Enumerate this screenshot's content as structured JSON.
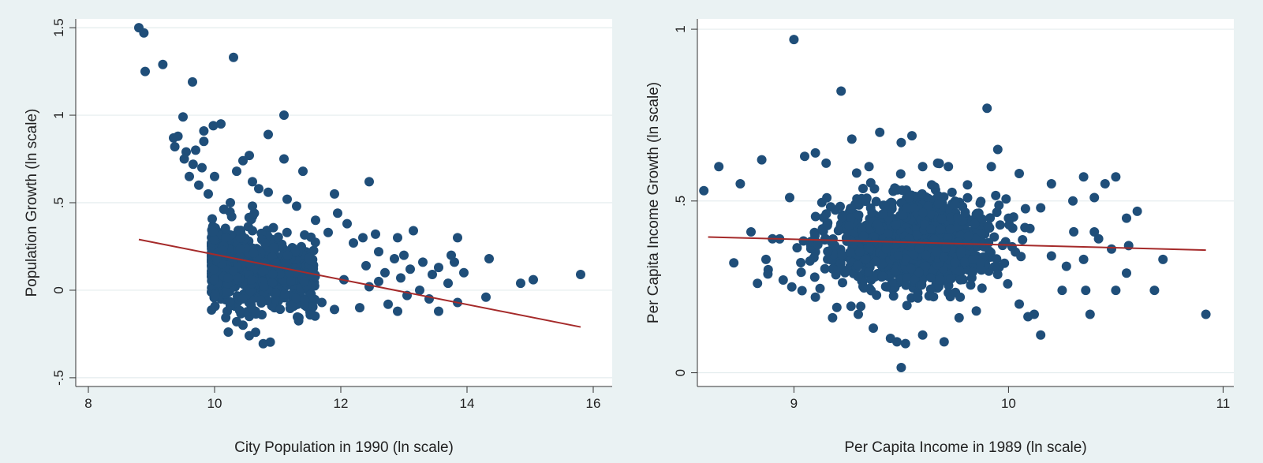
{
  "chart_data": [
    {
      "type": "scatter",
      "xlabel": "City Population in 1990 (ln scale)",
      "ylabel": "Population Growth (ln scale)",
      "xlim": [
        7.8,
        16.3
      ],
      "ylim": [
        -0.55,
        1.55
      ],
      "xticks": [
        8,
        10,
        12,
        14,
        16
      ],
      "yticks": [
        -0.5,
        0,
        0.5,
        1,
        1.5
      ],
      "ytick_labels": [
        "-.5",
        "0",
        ".5",
        "1",
        "1.5"
      ],
      "grid": true,
      "colors": {
        "points": "#1f4e79",
        "fit": "#a52a2a",
        "plot_bg": "#ffffff",
        "outer_bg": "#eaf2f3"
      },
      "fit_line": {
        "x": [
          8.8,
          15.8
        ],
        "y": [
          0.29,
          -0.21
        ]
      },
      "cloud": {
        "count": 900,
        "x_min": 9.95,
        "x_max": 11.6,
        "y_center_at_10": 0.16,
        "y_slope": -0.06,
        "y_spread": 0.1
      },
      "points": [
        [
          8.8,
          1.5
        ],
        [
          8.88,
          1.47
        ],
        [
          8.9,
          1.25
        ],
        [
          9.18,
          1.29
        ],
        [
          9.65,
          1.19
        ],
        [
          10.3,
          1.33
        ],
        [
          11.1,
          1.0
        ],
        [
          9.5,
          0.99
        ],
        [
          10.1,
          0.95
        ],
        [
          9.98,
          0.94
        ],
        [
          9.83,
          0.91
        ],
        [
          10.85,
          0.89
        ],
        [
          9.35,
          0.87
        ],
        [
          9.42,
          0.88
        ],
        [
          9.37,
          0.82
        ],
        [
          9.55,
          0.79
        ],
        [
          9.7,
          0.8
        ],
        [
          9.83,
          0.85
        ],
        [
          9.52,
          0.75
        ],
        [
          9.66,
          0.72
        ],
        [
          9.8,
          0.7
        ],
        [
          10.0,
          0.65
        ],
        [
          10.35,
          0.68
        ],
        [
          10.55,
          0.77
        ],
        [
          10.45,
          0.74
        ],
        [
          11.1,
          0.75
        ],
        [
          11.4,
          0.68
        ],
        [
          10.6,
          0.62
        ],
        [
          9.6,
          0.65
        ],
        [
          9.75,
          0.6
        ],
        [
          12.45,
          0.62
        ],
        [
          11.15,
          0.52
        ],
        [
          11.3,
          0.48
        ],
        [
          11.9,
          0.55
        ],
        [
          10.85,
          0.56
        ],
        [
          10.7,
          0.58
        ],
        [
          9.9,
          0.55
        ],
        [
          10.25,
          0.5
        ],
        [
          10.6,
          0.48
        ],
        [
          11.95,
          0.44
        ],
        [
          12.1,
          0.38
        ],
        [
          11.6,
          0.4
        ],
        [
          11.8,
          0.33
        ],
        [
          12.35,
          0.3
        ],
        [
          12.55,
          0.32
        ],
        [
          13.15,
          0.34
        ],
        [
          12.9,
          0.3
        ],
        [
          13.85,
          0.3
        ],
        [
          12.2,
          0.27
        ],
        [
          12.6,
          0.22
        ],
        [
          12.85,
          0.18
        ],
        [
          13.0,
          0.2
        ],
        [
          13.3,
          0.16
        ],
        [
          13.55,
          0.13
        ],
        [
          13.75,
          0.2
        ],
        [
          13.8,
          0.16
        ],
        [
          14.35,
          0.18
        ],
        [
          12.4,
          0.14
        ],
        [
          12.7,
          0.1
        ],
        [
          13.1,
          0.12
        ],
        [
          12.95,
          0.07
        ],
        [
          13.45,
          0.09
        ],
        [
          13.7,
          0.04
        ],
        [
          13.95,
          0.1
        ],
        [
          12.6,
          0.05
        ],
        [
          13.25,
          0.0
        ],
        [
          13.4,
          -0.05
        ],
        [
          13.05,
          -0.03
        ],
        [
          12.75,
          -0.08
        ],
        [
          12.9,
          -0.12
        ],
        [
          13.55,
          -0.12
        ],
        [
          13.85,
          -0.07
        ],
        [
          14.3,
          -0.04
        ],
        [
          12.3,
          -0.1
        ],
        [
          12.45,
          0.02
        ],
        [
          12.05,
          0.06
        ],
        [
          11.9,
          -0.11
        ],
        [
          11.7,
          -0.07
        ],
        [
          11.55,
          -0.14
        ],
        [
          11.5,
          0.0
        ],
        [
          14.85,
          0.04
        ],
        [
          15.05,
          0.06
        ],
        [
          15.8,
          0.09
        ],
        [
          10.55,
          -0.26
        ],
        [
          10.65,
          -0.24
        ],
        [
          10.45,
          -0.2
        ],
        [
          10.35,
          -0.18
        ],
        [
          10.55,
          -0.15
        ],
        [
          10.2,
          -0.12
        ],
        [
          10.75,
          -0.14
        ],
        [
          10.95,
          -0.1
        ],
        [
          11.2,
          -0.08
        ],
        [
          11.35,
          -0.05
        ],
        [
          10.1,
          -0.05
        ]
      ]
    },
    {
      "type": "scatter",
      "xlabel": "Per Capita Income in 1989 (ln scale)",
      "ylabel": "Per Capita Income Growth (ln scale)",
      "xlim": [
        8.55,
        11.05
      ],
      "ylim": [
        -0.04,
        1.03
      ],
      "xticks": [
        9,
        10,
        11
      ],
      "yticks": [
        0,
        0.5,
        1
      ],
      "ytick_labels": [
        "0",
        ".5",
        "1"
      ],
      "grid": true,
      "colors": {
        "points": "#1f4e79",
        "fit": "#a52a2a",
        "plot_bg": "#ffffff",
        "outer_bg": "#eaf2f3"
      },
      "fit_line": {
        "x": [
          8.6,
          10.92
        ],
        "y": [
          0.395,
          0.357
        ]
      },
      "cloud": {
        "count": 1100,
        "x_center": 9.55,
        "x_spread": 0.2,
        "y_center": 0.38,
        "y_spread": 0.065
      },
      "points": [
        [
          9.0,
          0.97
        ],
        [
          9.22,
          0.82
        ],
        [
          9.9,
          0.77
        ],
        [
          9.4,
          0.7
        ],
        [
          9.5,
          0.67
        ],
        [
          9.55,
          0.69
        ],
        [
          9.27,
          0.68
        ],
        [
          9.95,
          0.65
        ],
        [
          8.58,
          0.53
        ],
        [
          8.65,
          0.6
        ],
        [
          8.75,
          0.55
        ],
        [
          8.85,
          0.62
        ],
        [
          9.05,
          0.63
        ],
        [
          9.1,
          0.64
        ],
        [
          9.15,
          0.61
        ],
        [
          9.35,
          0.6
        ],
        [
          9.6,
          0.6
        ],
        [
          9.67,
          0.61
        ],
        [
          9.72,
          0.6
        ],
        [
          9.92,
          0.6
        ],
        [
          10.05,
          0.58
        ],
        [
          10.2,
          0.55
        ],
        [
          10.35,
          0.57
        ],
        [
          10.5,
          0.57
        ],
        [
          10.45,
          0.55
        ],
        [
          10.55,
          0.45
        ],
        [
          10.6,
          0.47
        ],
        [
          10.4,
          0.51
        ],
        [
          10.3,
          0.5
        ],
        [
          10.15,
          0.48
        ],
        [
          8.72,
          0.32
        ],
        [
          8.8,
          0.41
        ],
        [
          8.9,
          0.39
        ],
        [
          8.98,
          0.51
        ],
        [
          8.87,
          0.33
        ],
        [
          8.88,
          0.3
        ],
        [
          8.83,
          0.26
        ],
        [
          8.95,
          0.27
        ],
        [
          8.99,
          0.25
        ],
        [
          9.1,
          0.22
        ],
        [
          9.2,
          0.19
        ],
        [
          9.18,
          0.16
        ],
        [
          9.3,
          0.17
        ],
        [
          9.37,
          0.13
        ],
        [
          9.45,
          0.1
        ],
        [
          9.48,
          0.09
        ],
        [
          9.52,
          0.085
        ],
        [
          9.6,
          0.11
        ],
        [
          9.7,
          0.09
        ],
        [
          9.5,
          0.015
        ],
        [
          9.77,
          0.16
        ],
        [
          9.85,
          0.18
        ],
        [
          10.05,
          0.2
        ],
        [
          10.12,
          0.17
        ],
        [
          10.15,
          0.11
        ],
        [
          10.25,
          0.24
        ],
        [
          10.36,
          0.24
        ],
        [
          10.38,
          0.17
        ],
        [
          10.5,
          0.24
        ],
        [
          10.55,
          0.29
        ],
        [
          10.68,
          0.24
        ],
        [
          10.92,
          0.17
        ],
        [
          10.72,
          0.33
        ],
        [
          10.48,
          0.36
        ],
        [
          10.56,
          0.37
        ],
        [
          10.35,
          0.33
        ],
        [
          10.4,
          0.41
        ],
        [
          10.42,
          0.39
        ],
        [
          10.2,
          0.34
        ],
        [
          10.27,
          0.31
        ],
        [
          10.1,
          0.42
        ],
        [
          10.0,
          0.45
        ]
      ]
    }
  ]
}
